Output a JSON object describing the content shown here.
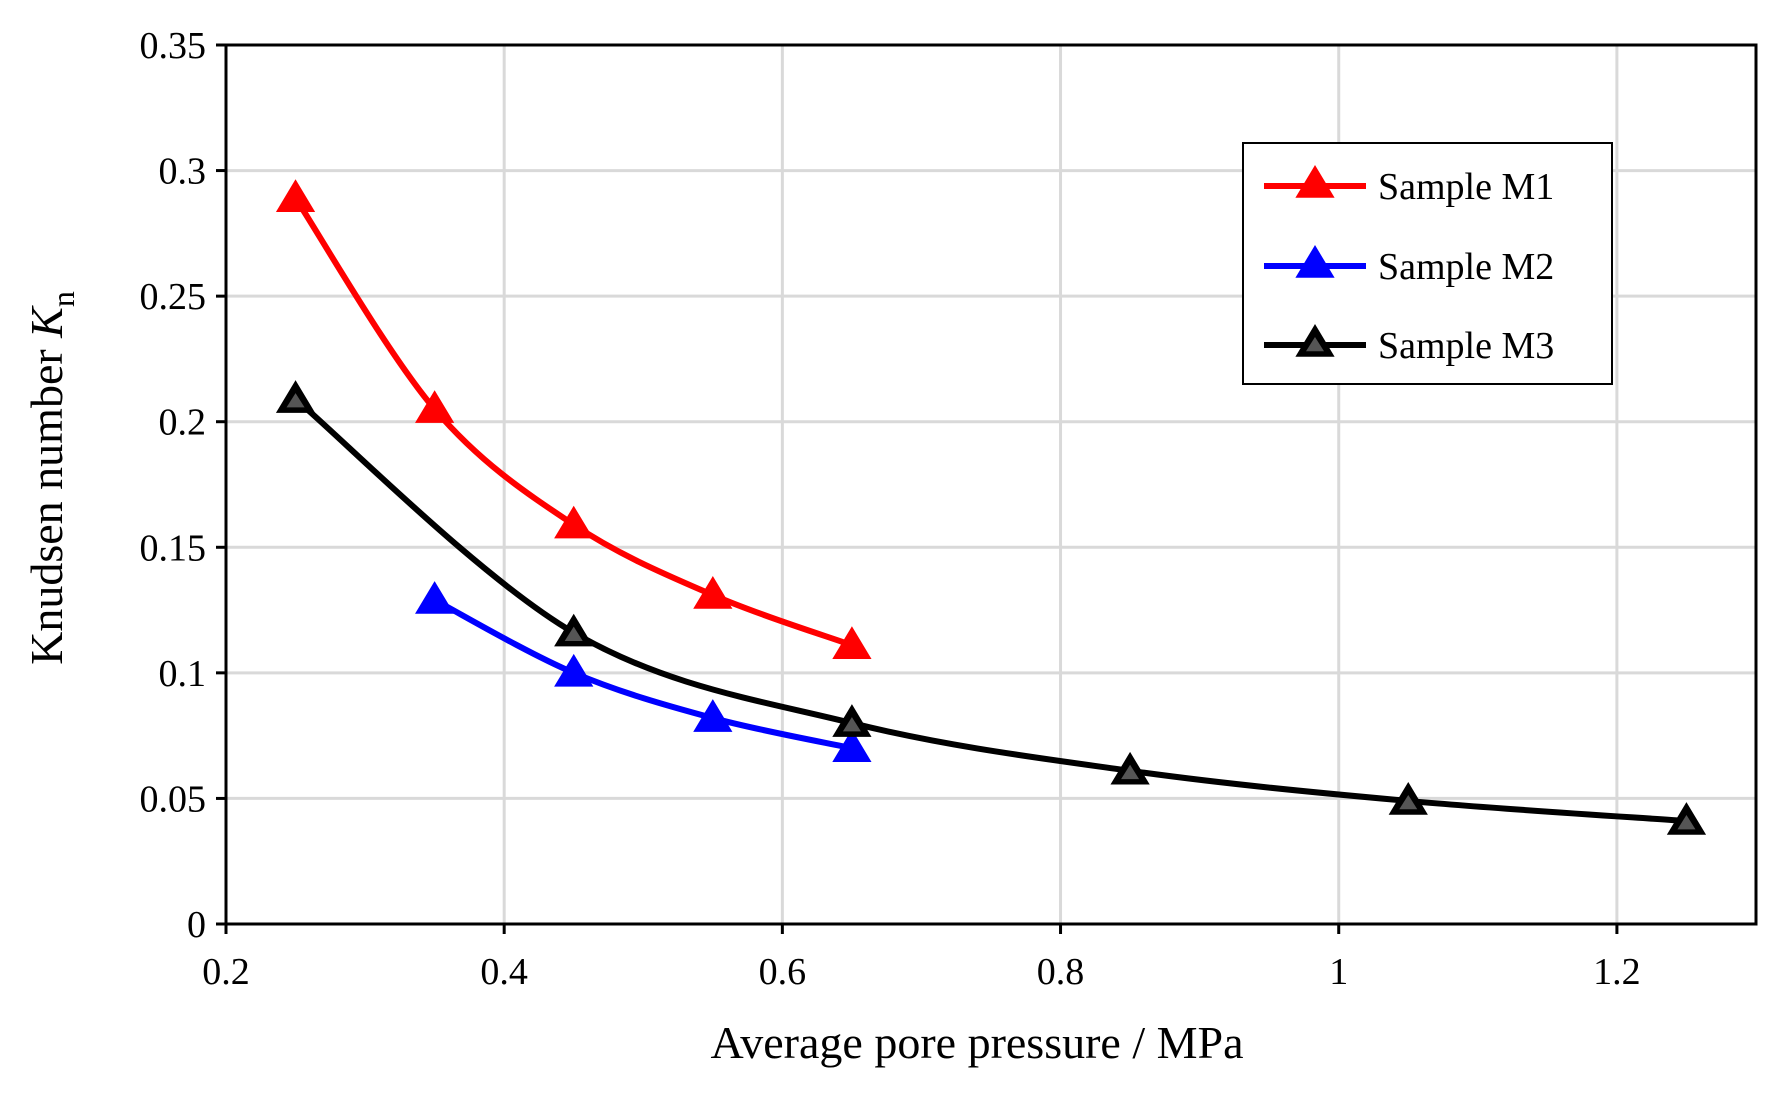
{
  "chart_data": {
    "type": "line",
    "title": "",
    "xlabel": "Average pore pressure / MPa",
    "ylabel": {
      "main": "Knudsen number ",
      "symbol": "K",
      "subscript": "n"
    },
    "xlim": [
      0.2,
      1.3
    ],
    "ylim": [
      0,
      0.35
    ],
    "xticks": [
      0.2,
      0.4,
      0.6,
      0.8,
      1.0,
      1.2
    ],
    "xtick_labels": [
      "0.2",
      "0.4",
      "0.6",
      "0.8",
      "1",
      "1.2"
    ],
    "yticks": [
      0,
      0.05,
      0.1,
      0.15,
      0.2,
      0.25,
      0.3,
      0.35
    ],
    "ytick_labels": [
      "0",
      "0.05",
      "0.1",
      "0.15",
      "0.2",
      "0.25",
      "0.3",
      "0.35"
    ],
    "grid": true,
    "legend_position": "top-right",
    "series": [
      {
        "name": "Sample M1",
        "color": "#ff0000",
        "marker": "triangle",
        "x": [
          0.25,
          0.35,
          0.45,
          0.55,
          0.65
        ],
        "y": [
          0.289,
          0.205,
          0.159,
          0.131,
          0.111
        ]
      },
      {
        "name": "Sample M2",
        "color": "#0000ff",
        "marker": "triangle",
        "x": [
          0.35,
          0.45,
          0.55,
          0.65
        ],
        "y": [
          0.129,
          0.1,
          0.082,
          0.07
        ]
      },
      {
        "name": "Sample M3",
        "color": "#000000",
        "marker": "triangle",
        "x": [
          0.25,
          0.45,
          0.65,
          0.85,
          1.05,
          1.25
        ],
        "y": [
          0.209,
          0.116,
          0.08,
          0.061,
          0.049,
          0.041
        ]
      }
    ]
  }
}
